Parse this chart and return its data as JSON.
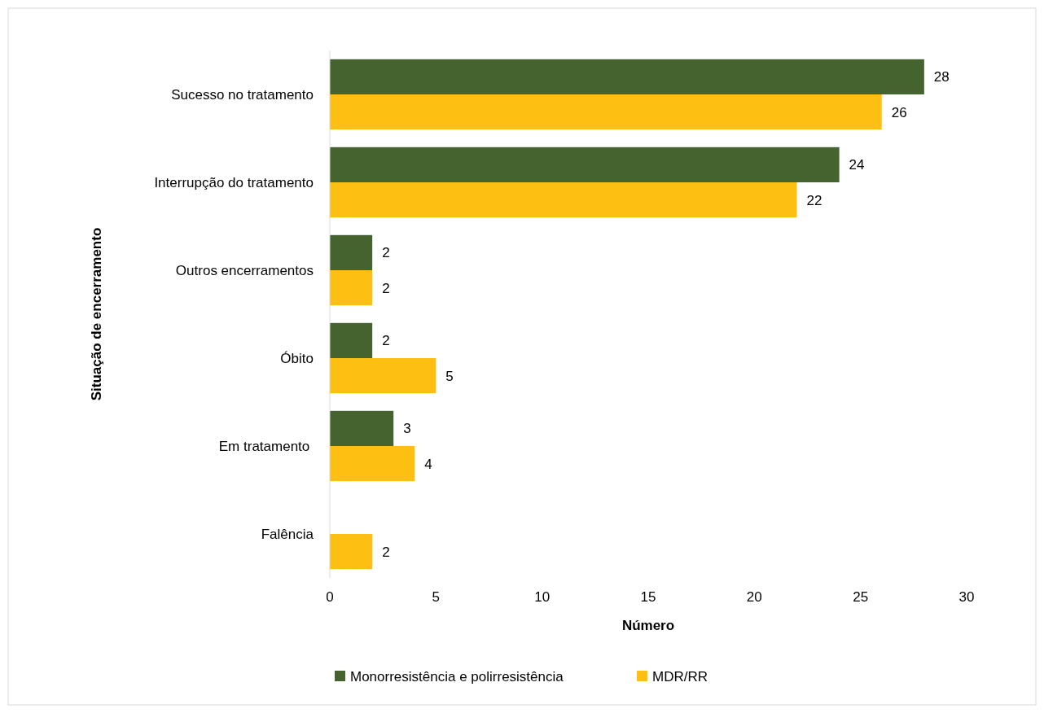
{
  "chart_data": {
    "type": "bar",
    "orientation": "horizontal",
    "xlabel": "Número",
    "ylabel": "Situação de encerramento",
    "categories": [
      "Sucesso no tratamento",
      "Interrupção do tratamento",
      "Outros encerramentos",
      "Óbito",
      "Em tratamento ",
      "Falência"
    ],
    "series": [
      {
        "name": "Monorresistência e polirresistência",
        "color": "#44632f",
        "values": [
          28,
          24,
          2,
          2,
          3,
          null
        ]
      },
      {
        "name": "MDR/RR",
        "color": "#fdbf12",
        "values": [
          26,
          22,
          2,
          5,
          4,
          2
        ]
      }
    ],
    "xlim": [
      0,
      30
    ],
    "xticks": [
      0,
      5,
      10,
      15,
      20,
      25,
      30
    ],
    "grid": false,
    "legend": "bottom",
    "data_labels": true
  }
}
